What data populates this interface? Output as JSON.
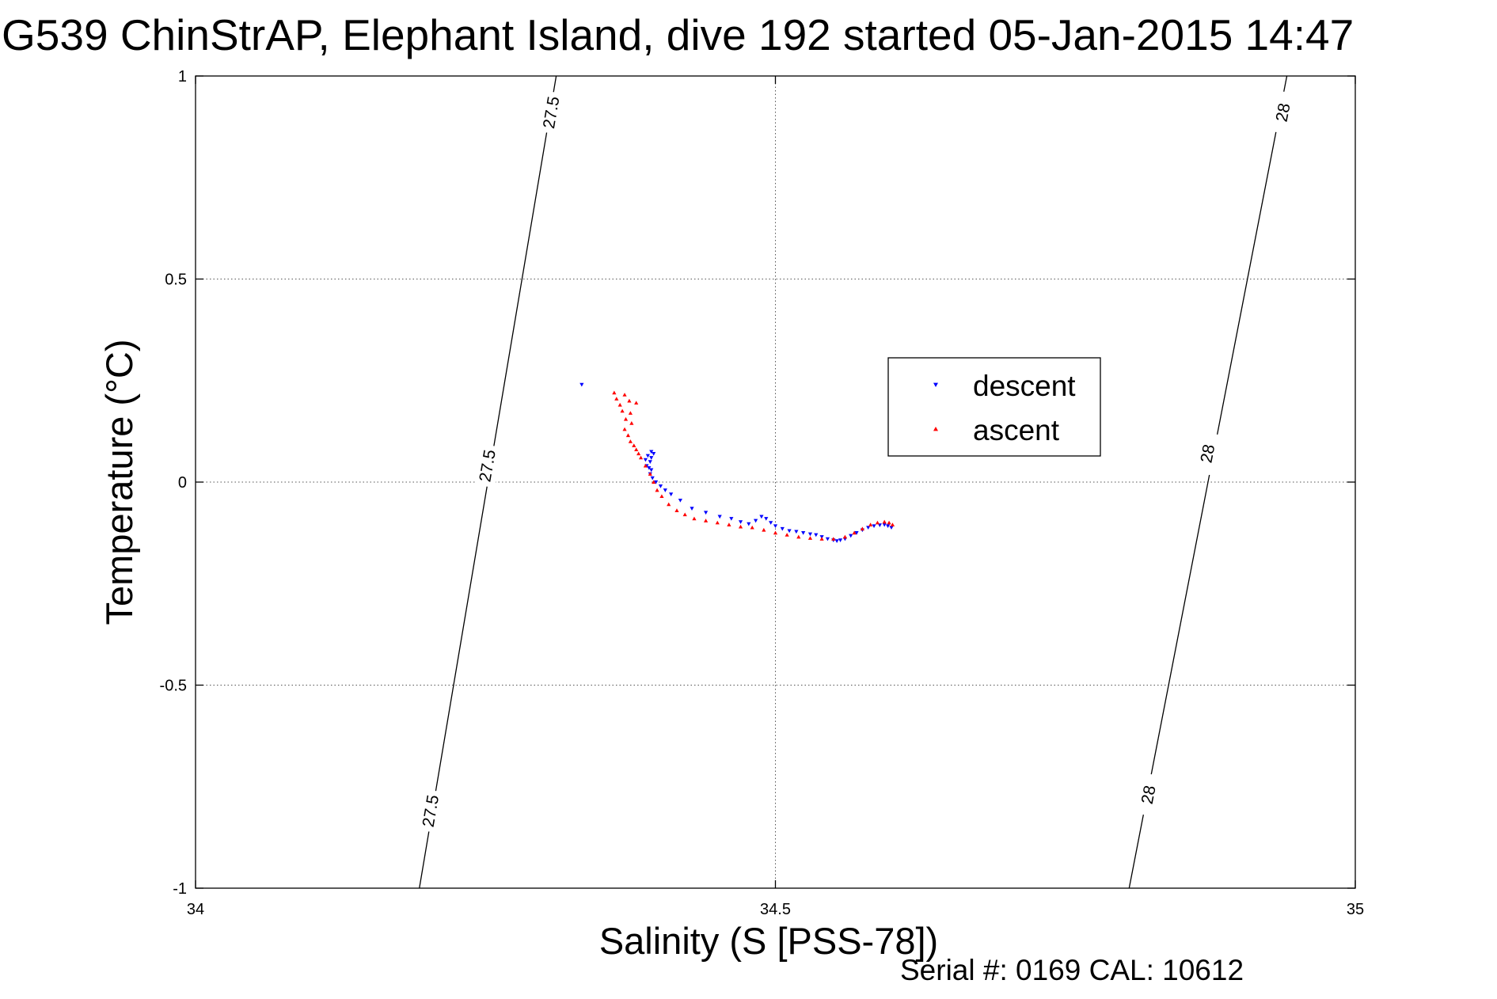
{
  "chart_data": {
    "type": "scatter",
    "title": "G539 ChinStrAP, Elephant Island, dive 192 started 05-Jan-2015 14:47",
    "xlabel": "Salinity (S [PSS-78])",
    "ylabel": "Temperature (°C)",
    "xlim": [
      34,
      35
    ],
    "ylim": [
      -1,
      1
    ],
    "x_ticks": [
      34,
      34.5,
      35
    ],
    "x_tick_labels": [
      "34",
      "34.5",
      "35"
    ],
    "y_ticks": [
      1,
      0.5,
      0,
      -0.5,
      -1
    ],
    "y_tick_labels": [
      "1",
      "0.5",
      "0",
      "-0.5",
      "-1"
    ],
    "grid": true,
    "legend_position": "upper-right",
    "footer": "Serial #: 0169 CAL: 10612",
    "isopycnals": [
      {
        "value_label": "27.5",
        "points": [
          [
            34.193,
            -1.0
          ],
          [
            34.311,
            1.0
          ]
        ]
      },
      {
        "value_label": "28",
        "points": [
          [
            34.805,
            -1.0
          ],
          [
            34.941,
            1.0
          ]
        ]
      }
    ],
    "isopycnal_labels": [
      {
        "text": "27.5",
        "x": 34.307,
        "y": 0.91
      },
      {
        "text": "27.5",
        "x": 34.252,
        "y": 0.04
      },
      {
        "text": "27.5",
        "x": 34.203,
        "y": -0.81
      },
      {
        "text": "28",
        "x": 34.938,
        "y": 0.91
      },
      {
        "text": "28",
        "x": 34.873,
        "y": 0.07
      },
      {
        "text": "28",
        "x": 34.822,
        "y": -0.77
      }
    ],
    "series": [
      {
        "name": "descent",
        "color": "#0000ff",
        "marker": "triangle-down",
        "points": [
          [
            34.333,
            0.24
          ],
          [
            34.393,
            0.075
          ],
          [
            34.395,
            0.07
          ],
          [
            34.39,
            0.065
          ],
          [
            34.393,
            0.06
          ],
          [
            34.388,
            0.055
          ],
          [
            34.392,
            0.05
          ],
          [
            34.389,
            0.04
          ],
          [
            34.391,
            0.035
          ],
          [
            34.393,
            0.03
          ],
          [
            34.392,
            0.02
          ],
          [
            34.394,
            0.01
          ],
          [
            34.397,
            0.0
          ],
          [
            34.401,
            -0.01
          ],
          [
            34.405,
            -0.02
          ],
          [
            34.41,
            -0.03
          ],
          [
            34.418,
            -0.045
          ],
          [
            34.428,
            -0.065
          ],
          [
            34.44,
            -0.075
          ],
          [
            34.452,
            -0.085
          ],
          [
            34.462,
            -0.09
          ],
          [
            34.47,
            -0.098
          ],
          [
            34.477,
            -0.103
          ],
          [
            34.483,
            -0.095
          ],
          [
            34.488,
            -0.085
          ],
          [
            34.492,
            -0.09
          ],
          [
            34.496,
            -0.1
          ],
          [
            34.5,
            -0.108
          ],
          [
            34.506,
            -0.115
          ],
          [
            34.512,
            -0.12
          ],
          [
            34.518,
            -0.122
          ],
          [
            34.524,
            -0.125
          ],
          [
            34.53,
            -0.128
          ],
          [
            34.535,
            -0.13
          ],
          [
            34.54,
            -0.135
          ],
          [
            34.545,
            -0.14
          ],
          [
            34.55,
            -0.143
          ],
          [
            34.553,
            -0.145
          ],
          [
            34.556,
            -0.143
          ],
          [
            34.56,
            -0.14
          ],
          [
            34.565,
            -0.132
          ],
          [
            34.57,
            -0.125
          ],
          [
            34.575,
            -0.118
          ],
          [
            34.58,
            -0.112
          ],
          [
            34.585,
            -0.108
          ],
          [
            34.59,
            -0.106
          ],
          [
            34.594,
            -0.105
          ],
          [
            34.597,
            -0.108
          ],
          [
            34.6,
            -0.112
          ]
        ]
      },
      {
        "name": "ascent",
        "color": "#ff0000",
        "marker": "triangle-up",
        "points": [
          [
            34.361,
            0.22
          ],
          [
            34.363,
            0.205
          ],
          [
            34.37,
            0.215
          ],
          [
            34.366,
            0.19
          ],
          [
            34.374,
            0.2
          ],
          [
            34.38,
            0.195
          ],
          [
            34.368,
            0.175
          ],
          [
            34.375,
            0.17
          ],
          [
            34.371,
            0.155
          ],
          [
            34.376,
            0.145
          ],
          [
            34.37,
            0.13
          ],
          [
            34.373,
            0.115
          ],
          [
            34.375,
            0.1
          ],
          [
            34.378,
            0.09
          ],
          [
            34.38,
            0.08
          ],
          [
            34.382,
            0.07
          ],
          [
            34.384,
            0.06
          ],
          [
            34.388,
            0.04
          ],
          [
            34.392,
            0.02
          ],
          [
            34.395,
            0.0
          ],
          [
            34.398,
            -0.02
          ],
          [
            34.402,
            -0.035
          ],
          [
            34.408,
            -0.055
          ],
          [
            34.415,
            -0.07
          ],
          [
            34.422,
            -0.08
          ],
          [
            34.43,
            -0.09
          ],
          [
            34.44,
            -0.095
          ],
          [
            34.45,
            -0.1
          ],
          [
            34.46,
            -0.105
          ],
          [
            34.47,
            -0.11
          ],
          [
            34.48,
            -0.112
          ],
          [
            34.49,
            -0.118
          ],
          [
            34.5,
            -0.125
          ],
          [
            34.51,
            -0.13
          ],
          [
            34.52,
            -0.135
          ],
          [
            34.53,
            -0.138
          ],
          [
            34.54,
            -0.14
          ],
          [
            34.55,
            -0.14
          ],
          [
            34.56,
            -0.135
          ],
          [
            34.568,
            -0.125
          ],
          [
            34.575,
            -0.115
          ],
          [
            34.582,
            -0.105
          ],
          [
            34.588,
            -0.1
          ],
          [
            34.594,
            -0.098
          ],
          [
            34.598,
            -0.1
          ],
          [
            34.601,
            -0.105
          ]
        ]
      }
    ]
  }
}
